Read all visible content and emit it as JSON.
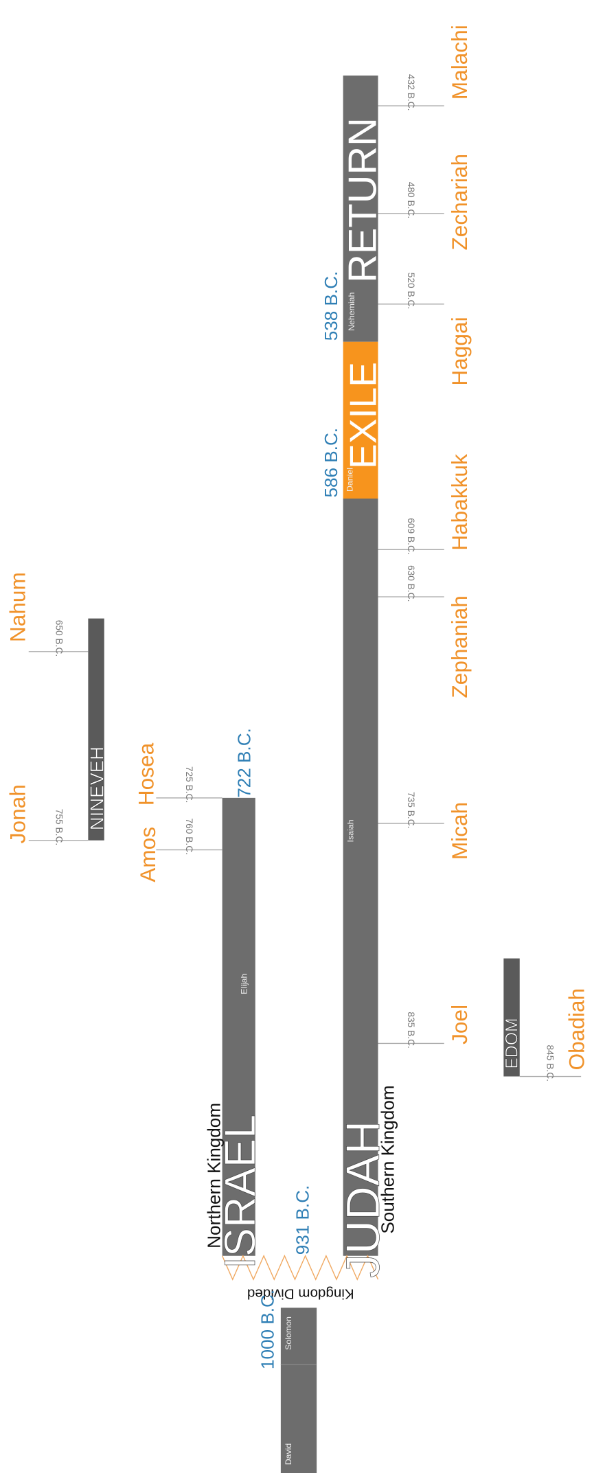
{
  "periods": {
    "return": "RETURN",
    "exile": "EXILE",
    "judah": "JUDAH",
    "israel": "ISRAEL",
    "nineveh": "NINEVEH",
    "edom": "EDOM"
  },
  "kingdoms": {
    "southern": "Southern Kingdom",
    "northern": "Northern Kingdom",
    "divided": "Kingdom Divided"
  },
  "people": [
    "Nehemiah",
    "Daniel",
    "Isaiah",
    "Elijah",
    "Solomon",
    "David"
  ],
  "dates": [
    "538 B.C.",
    "586 B.C.",
    "722 B.C.",
    "931 B.C.",
    "1000 B.C."
  ],
  "prophets": [
    {
      "name": "Malachi",
      "date": "432 B.C."
    },
    {
      "name": "Zechariah",
      "date": "480 B.C."
    },
    {
      "name": "Haggai",
      "date": "520 B.C."
    },
    {
      "name": "Habakkuk",
      "date": "609 B.C."
    },
    {
      "name": "Zephaniah",
      "date": "630 B.C."
    },
    {
      "name": "Micah",
      "date": "735 B.C."
    },
    {
      "name": "Joel",
      "date": "835 B.C."
    },
    {
      "name": "Hosea",
      "date": "725 B.C."
    },
    {
      "name": "Amos",
      "date": "760 B.C."
    },
    {
      "name": "Nahum",
      "date": "650 B.C."
    },
    {
      "name": "Jonah",
      "date": "755 B.C."
    },
    {
      "name": "Obadiah",
      "date": "845 B.C."
    }
  ]
}
